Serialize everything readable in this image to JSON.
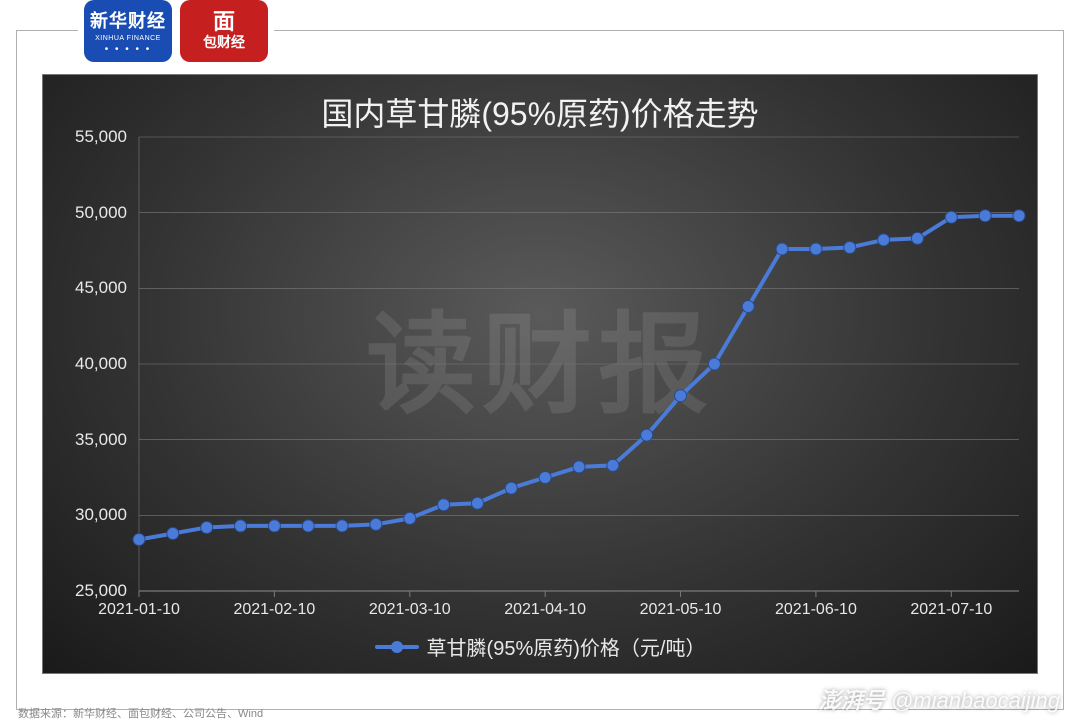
{
  "logos": {
    "xinhua": {
      "line1": "新华财经",
      "line2": "XINHUA FINANCE"
    },
    "mianbao": {
      "big": "面",
      "small": "包财经"
    }
  },
  "chart": {
    "type": "line",
    "title": "国内草甘膦(95%原药)价格走势",
    "watermark_text": "读财报",
    "legend_label": "草甘膦(95%原药)价格（元/吨）",
    "background_gradient": [
      "#5a5a5a",
      "#343434",
      "#1a1a1a"
    ],
    "grid_color": "#7a7a7a",
    "axis_text_color": "#e8e8e8",
    "title_fontsize": 32,
    "axis_fontsize": 17,
    "line_color": "#4a7bd9",
    "line_width": 4,
    "marker_size": 6,
    "marker_color": "#4a7bd9",
    "ylim": [
      25000,
      55000
    ],
    "ytick_step": 5000,
    "yticks": [
      25000,
      30000,
      35000,
      40000,
      45000,
      50000,
      55000
    ],
    "ytick_labels": [
      "25,000",
      "30,000",
      "35,000",
      "40,000",
      "45,000",
      "50,000",
      "55,000"
    ],
    "xticks_idx": [
      0,
      4,
      8,
      12,
      16,
      20,
      24
    ],
    "xtick_labels": [
      "2021-01-10",
      "2021-02-10",
      "2021-03-10",
      "2021-04-10",
      "2021-05-10",
      "2021-06-10",
      "2021-07-10"
    ],
    "data": {
      "n_points": 27,
      "values": [
        28400,
        28800,
        29200,
        29300,
        29300,
        29300,
        29300,
        29400,
        29800,
        30700,
        30800,
        31800,
        32500,
        33200,
        33300,
        35300,
        37900,
        40000,
        43800,
        47600,
        47600,
        47700,
        48200,
        48300,
        49700,
        49800,
        49800
      ]
    }
  },
  "source_text": "数据来源：新华财经、面包财经、公司公告、Wind",
  "bottom_watermark": {
    "brand": "澎湃号",
    "handle": "@mianbaocaijing"
  }
}
